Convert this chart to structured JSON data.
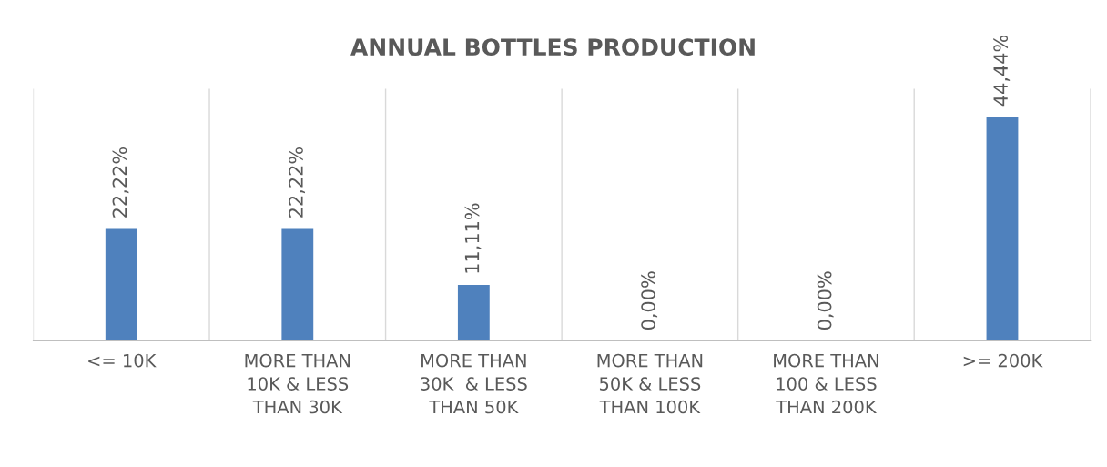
{
  "chart_data": {
    "type": "bar",
    "title": "ANNUAL BOTTLES PRODUCTION",
    "categories": [
      "<= 10K",
      "MORE THAN\n10K & LESS\nTHAN 30K",
      "MORE THAN\n30K  & LESS\nTHAN 50K",
      "MORE THAN\n50K & LESS\nTHAN 100K",
      "MORE THAN\n100 & LESS\nTHAN 200K",
      ">= 200K"
    ],
    "values": [
      22.22,
      22.22,
      11.11,
      0,
      0,
      44.44
    ],
    "value_labels": [
      "22,22%",
      "22,22%",
      "11,11%",
      "0,00%",
      "0,00%",
      "44,44%"
    ],
    "color": "#4f81bd",
    "ylim": [
      0,
      50
    ],
    "tick_labels": "x",
    "grid": "x",
    "legend": false
  }
}
